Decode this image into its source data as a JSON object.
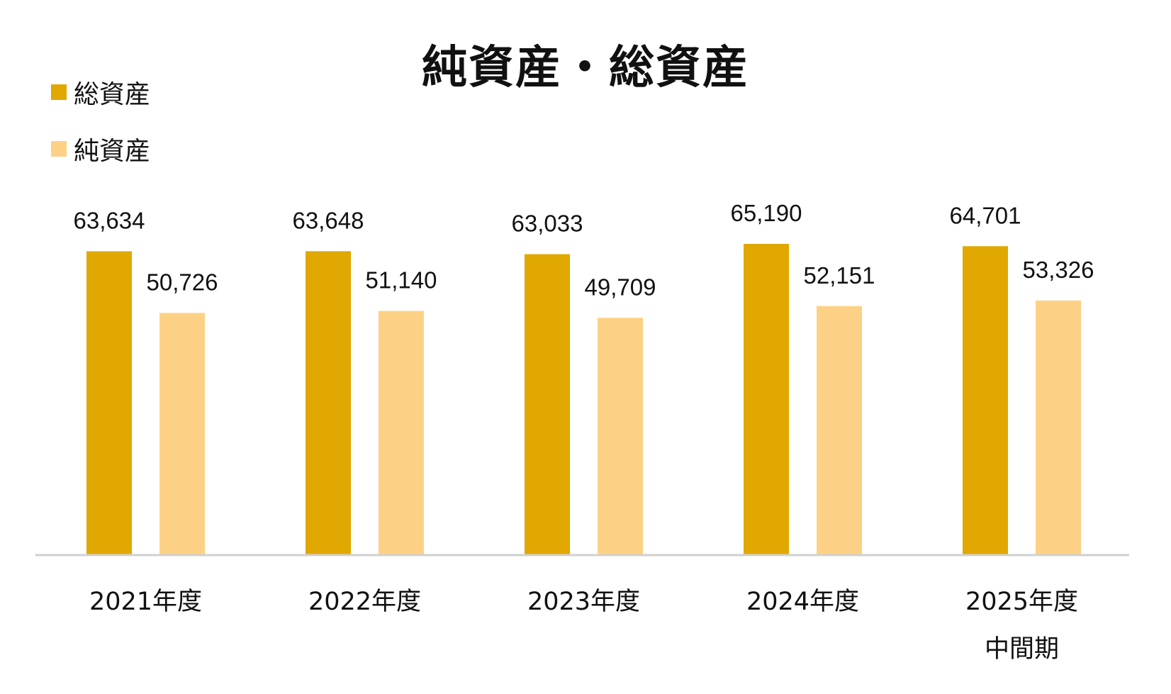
{
  "chart_data": {
    "type": "bar",
    "title": "純資産・総資産",
    "categories": [
      "2021年度",
      "2022年度",
      "2023年度",
      "2024年度",
      "2025年度\n中間期"
    ],
    "series": [
      {
        "name": "総資産",
        "color": "#E0A800",
        "values": [
          63634,
          63648,
          63033,
          65190,
          64701
        ],
        "labels": [
          "63,634",
          "63,648",
          "63,033",
          "65,190",
          "64,701"
        ]
      },
      {
        "name": "純資産",
        "color": "#FDD185",
        "values": [
          50726,
          51140,
          49709,
          52151,
          53326
        ],
        "labels": [
          "50,726",
          "51,140",
          "49,709",
          "52,151",
          "53,326"
        ]
      }
    ],
    "ylim": [
      0,
      65190
    ],
    "grid": false,
    "legend": "top-left",
    "axis_color": "#D0D0D0"
  }
}
